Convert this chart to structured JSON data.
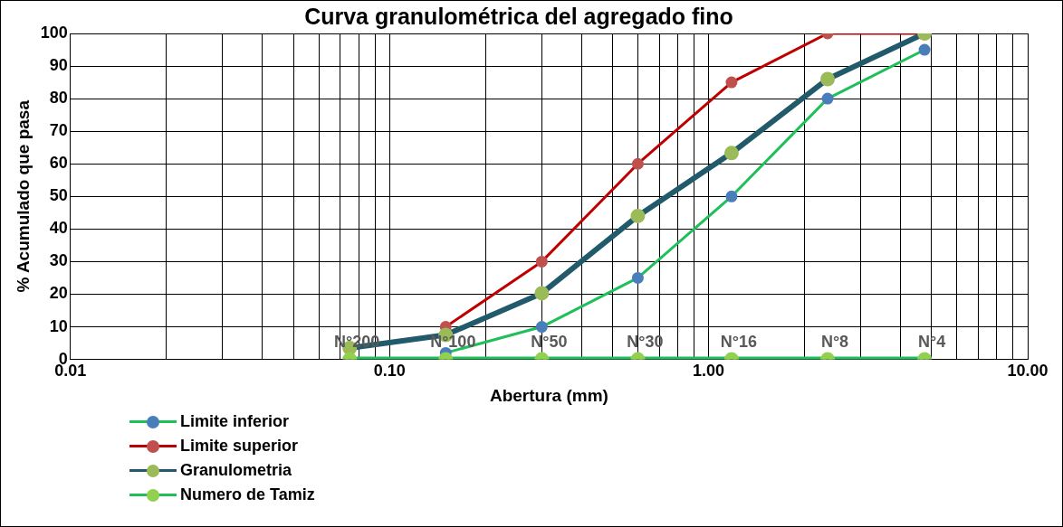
{
  "chart_data": {
    "type": "line",
    "title": "Curva granulométrica del agregado fino",
    "xlabel": "Abertura (mm)",
    "ylabel": "% Acumulado que pasa",
    "log": "x",
    "grid": true,
    "legend": "bottom left",
    "marker": "circle",
    "line_style": "solid",
    "xlim": [
      0.01,
      10
    ],
    "ylim": [
      0,
      100
    ],
    "xticks": [
      {
        "value": 0.01,
        "label": "0.01"
      },
      {
        "value": 0.02,
        "label": null
      },
      {
        "value": 0.03,
        "label": null
      },
      {
        "value": 0.04,
        "label": null
      },
      {
        "value": 0.05,
        "label": null
      },
      {
        "value": 0.06,
        "label": null
      },
      {
        "value": 0.07,
        "label": null
      },
      {
        "value": 0.08,
        "label": null
      },
      {
        "value": 0.09,
        "label": null
      },
      {
        "value": 0.1,
        "label": "0.10"
      },
      {
        "value": 0.2,
        "label": null
      },
      {
        "value": 0.3,
        "label": null
      },
      {
        "value": 0.4,
        "label": null
      },
      {
        "value": 0.5,
        "label": null
      },
      {
        "value": 0.6,
        "label": null
      },
      {
        "value": 0.7,
        "label": null
      },
      {
        "value": 0.8,
        "label": null
      },
      {
        "value": 0.9,
        "label": null
      },
      {
        "value": 1,
        "label": "1.00"
      },
      {
        "value": 2,
        "label": null
      },
      {
        "value": 3,
        "label": null
      },
      {
        "value": 4,
        "label": null
      },
      {
        "value": 5,
        "label": null
      },
      {
        "value": 6,
        "label": null
      },
      {
        "value": 7,
        "label": null
      },
      {
        "value": 8,
        "label": null
      },
      {
        "value": 9,
        "label": null
      },
      {
        "value": 10,
        "label": "10.00"
      }
    ],
    "yticks": [
      0,
      10,
      20,
      30,
      40,
      50,
      60,
      70,
      80,
      90,
      100
    ],
    "series": [
      {
        "name": "Limite inferior",
        "color": "#1fbf5a",
        "colors": [
          "#4a7ebb",
          "#4a7ebb",
          "#4a7ebb",
          "#4a7ebb",
          "#4a7ebb",
          "#4a7ebb"
        ],
        "x": [
          0.15,
          0.3,
          0.6,
          1.18,
          2.36,
          4.75
        ],
        "values": [
          2,
          10,
          25,
          50,
          80,
          95
        ]
      },
      {
        "name": "Limite superior",
        "color": "#c00000",
        "colors": [
          "#c0504d",
          "#c0504d",
          "#c0504d",
          "#c0504d",
          "#c0504d",
          "#c0504d"
        ],
        "x": [
          0.15,
          0.3,
          0.6,
          1.18,
          2.36,
          4.75
        ],
        "values": [
          10,
          30,
          60,
          85,
          100,
          100
        ]
      },
      {
        "name": "Granulometria",
        "color": "#215a6b",
        "colors": [
          "#9bbb59",
          "#9bbb59",
          "#9bbb59",
          "#9bbb59",
          "#9bbb59",
          "#9bbb59",
          "#9bbb59"
        ],
        "x": [
          0.075,
          0.15,
          0.3,
          0.6,
          1.18,
          2.36,
          4.75
        ],
        "values": [
          3.5,
          7.5,
          20.3,
          44,
          63.3,
          86,
          100
        ]
      },
      {
        "name": "Numero de Tamiz",
        "color": "#1fbf5a",
        "colors": [
          "#92d050",
          "#92d050",
          "#92d050",
          "#92d050",
          "#92d050",
          "#92d050",
          "#92d050"
        ],
        "x": [
          0.075,
          0.15,
          0.3,
          0.6,
          1.18,
          2.36,
          4.75
        ],
        "values": [
          0,
          0,
          0,
          0,
          0,
          0,
          0
        ]
      }
    ],
    "annotations": [
      {
        "text": "N°200",
        "x": 0.075,
        "y": 0
      },
      {
        "text": "N°100",
        "x": 0.15,
        "y": 0
      },
      {
        "text": "N°50",
        "x": 0.3,
        "y": 0
      },
      {
        "text": "N°30",
        "x": 0.6,
        "y": 0
      },
      {
        "text": "N°16",
        "x": 1.18,
        "y": 0
      },
      {
        "text": "N°8",
        "x": 2.36,
        "y": 0
      },
      {
        "text": "N°4",
        "x": 4.75,
        "y": 0
      }
    ]
  }
}
